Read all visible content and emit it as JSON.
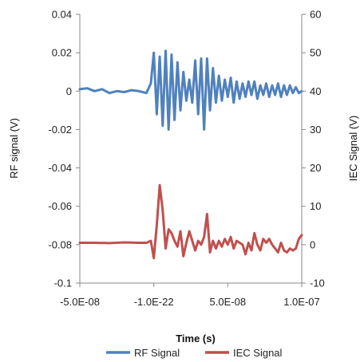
{
  "chart_data": {
    "type": "line",
    "title": "",
    "xlabel": "Time (s)",
    "ylabel": "RF signal (V)",
    "y2label": "IEC Signal (V)",
    "xlim": [
      -5e-08,
      1e-07
    ],
    "ylim": [
      -0.1,
      0.04
    ],
    "y2lim": [
      -10,
      60
    ],
    "x_ticks": [
      -5e-08,
      0,
      5e-08,
      1e-07
    ],
    "x_tick_labels": [
      "-5.0E-08",
      "-1.0E-22",
      "5.0E-08",
      "1.0E-07"
    ],
    "y_ticks": [
      0.04,
      0.02,
      0,
      -0.02,
      -0.04,
      -0.06,
      -0.08,
      -0.1
    ],
    "y_tick_labels": [
      "0.04",
      "0.02",
      "0",
      "-0.02",
      "-0.04",
      "-0.06",
      "-0.08",
      "-0.1"
    ],
    "y2_ticks": [
      60,
      50,
      40,
      30,
      20,
      10,
      0,
      -10
    ],
    "y2_tick_labels": [
      "60",
      "50",
      "40",
      "30",
      "20",
      "10",
      "0",
      "-10"
    ],
    "grid": false,
    "legend_position": "bottom",
    "series": [
      {
        "name": "RF Signal",
        "axis": "left",
        "color": "#4f81bd",
        "x": [
          -5e-08,
          -4.5e-08,
          -4e-08,
          -3.5e-08,
          -3e-08,
          -2.5e-08,
          -2e-08,
          -1.5e-08,
          -1e-08,
          -5e-09,
          -2e-09,
          0,
          2e-09,
          4e-09,
          6e-09,
          8e-09,
          1e-08,
          1.2e-08,
          1.4e-08,
          1.6e-08,
          1.8e-08,
          2e-08,
          2.2e-08,
          2.4e-08,
          2.6e-08,
          2.8e-08,
          3e-08,
          3.2e-08,
          3.4e-08,
          3.6e-08,
          3.8e-08,
          4e-08,
          4.2e-08,
          4.4e-08,
          4.6e-08,
          4.8e-08,
          5e-08,
          5.2e-08,
          5.4e-08,
          5.6e-08,
          5.8e-08,
          6e-08,
          6.2e-08,
          6.4e-08,
          6.6e-08,
          6.8e-08,
          7e-08,
          7.2e-08,
          7.4e-08,
          7.6e-08,
          7.8e-08,
          8e-08,
          8.2e-08,
          8.4e-08,
          8.6e-08,
          8.8e-08,
          9e-08,
          9.2e-08,
          9.4e-08,
          9.6e-08,
          9.8e-08,
          1e-07
        ],
        "y": [
          0.001,
          0.0015,
          0.0,
          0.001,
          -0.001,
          0.0,
          -0.0005,
          0.0005,
          0.0,
          -0.001,
          0.004,
          0.02,
          -0.012,
          0.018,
          -0.018,
          0.021,
          -0.02,
          0.019,
          -0.015,
          0.015,
          -0.01,
          0.01,
          -0.005,
          0.006,
          -0.006,
          0.016,
          -0.012,
          0.017,
          -0.02,
          0.017,
          -0.01,
          0.012,
          -0.006,
          0.008,
          -0.005,
          0.006,
          -0.003,
          0.007,
          -0.006,
          0.005,
          -0.004,
          0.004,
          -0.003,
          0.005,
          -0.002,
          0.005,
          -0.004,
          0.003,
          -0.002,
          0.004,
          -0.003,
          0.003,
          -0.002,
          0.004,
          -0.003,
          0.003,
          -0.002,
          0.003,
          -0.001,
          0.002,
          -0.001,
          0.0
        ]
      },
      {
        "name": "IEC Signal",
        "axis": "right",
        "color": "#c0504d",
        "x": [
          -5e-08,
          -4e-08,
          -3e-08,
          -2e-08,
          -1e-08,
          -5e-09,
          -2e-09,
          0,
          2e-09,
          4e-09,
          6e-09,
          8e-09,
          1e-08,
          1.2e-08,
          1.4e-08,
          1.6e-08,
          1.8e-08,
          2e-08,
          2.2e-08,
          2.4e-08,
          2.6e-08,
          2.8e-08,
          3e-08,
          3.2e-08,
          3.4e-08,
          3.6e-08,
          3.8e-08,
          4e-08,
          4.2e-08,
          4.4e-08,
          4.6e-08,
          4.8e-08,
          5e-08,
          5.2e-08,
          5.4e-08,
          5.6e-08,
          5.8e-08,
          6e-08,
          6.2e-08,
          6.4e-08,
          6.6e-08,
          6.8e-08,
          7e-08,
          7.2e-08,
          7.4e-08,
          7.6e-08,
          7.8e-08,
          8e-08,
          8.2e-08,
          8.4e-08,
          8.6e-08,
          8.8e-08,
          9e-08,
          9.2e-08,
          9.4e-08,
          9.6e-08,
          9.8e-08,
          1e-07
        ],
        "y": [
          0.5,
          0.5,
          0.4,
          0.6,
          0.5,
          0.5,
          1.0,
          -3.5,
          5.0,
          15.5,
          9.0,
          -1.0,
          4.0,
          3.0,
          1.0,
          -0.5,
          3.5,
          -3.0,
          0.5,
          3.5,
          1.0,
          -1.5,
          1.0,
          0.0,
          2.0,
          8.0,
          -2.0,
          1.0,
          -1.0,
          1.0,
          -0.5,
          1.5,
          0.0,
          2.0,
          -1.0,
          1.0,
          0.5,
          0.0,
          -2.5,
          0.5,
          -1.5,
          3.0,
          0.0,
          -1.5,
          1.5,
          0.5,
          1.5,
          0.0,
          -1.0,
          -2.0,
          0.5,
          -1.5,
          -2.0,
          -1.0,
          -1.5,
          -1.0,
          1.5,
          2.5
        ]
      }
    ]
  }
}
